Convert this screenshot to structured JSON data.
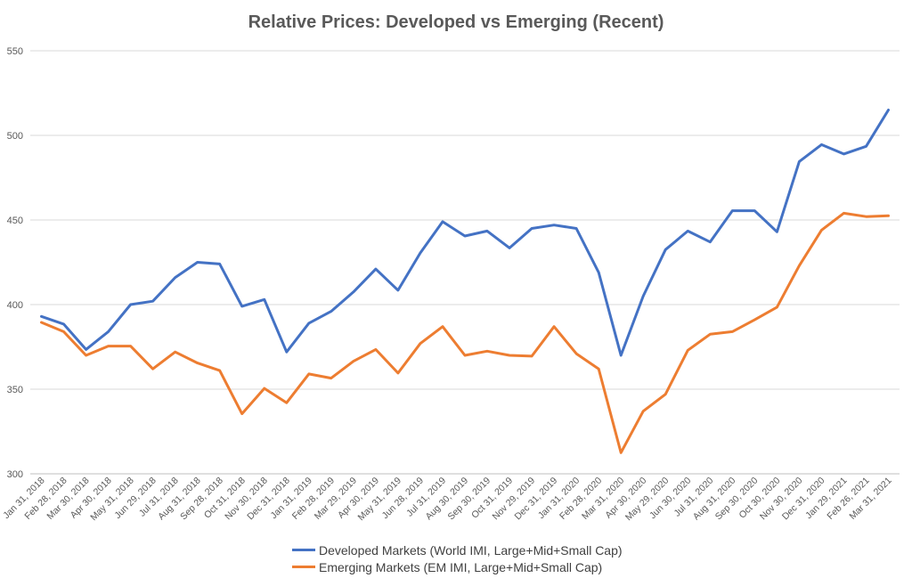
{
  "chart_data": {
    "type": "line",
    "title": "Relative Prices: Developed vs Emerging (Recent)",
    "xlabel": "",
    "ylabel": "",
    "ylim": [
      300,
      550
    ],
    "yticks": [
      300,
      350,
      400,
      450,
      500,
      550
    ],
    "grid": "horizontal",
    "legend_position": "bottom",
    "categories": [
      "Jan 31, 2018",
      "Feb 28, 2018",
      "Mar 30, 2018",
      "Apr 30, 2018",
      "May 31, 2018",
      "Jun 29, 2018",
      "Jul 31, 2018",
      "Aug 31, 2018",
      "Sep 28, 2018",
      "Oct 31, 2018",
      "Nov 30, 2018",
      "Dec 31, 2018",
      "Jan 31, 2019",
      "Feb 28, 2019",
      "Mar 29, 2019",
      "Apr 30, 2019",
      "May 31, 2019",
      "Jun 28, 2019",
      "Jul 31, 2019",
      "Aug 30, 2019",
      "Sep 30, 2019",
      "Oct 31, 2019",
      "Nov 29, 2019",
      "Dec 31, 2019",
      "Jan 31, 2020",
      "Feb 28, 2020",
      "Mar 31, 2020",
      "Apr 30, 2020",
      "May 29, 2020",
      "Jun 30, 2020",
      "Jul 31, 2020",
      "Aug 31, 2020",
      "Sep 30, 2020",
      "Oct 30, 2020",
      "Nov 30, 2020",
      "Dec 31, 2020",
      "Jan 29, 2021",
      "Feb 26, 2021",
      "Mar 31, 2021"
    ],
    "series": [
      {
        "name": "Developed Markets (World IMI, Large+Mid+Small Cap)",
        "color": "#4472C4",
        "values": [
          393,
          388.5,
          373.5,
          384,
          400,
          402,
          416,
          425,
          424,
          399,
          403,
          372,
          389,
          396,
          407.5,
          421,
          408.5,
          430.5,
          449,
          440.5,
          443.5,
          433.5,
          445,
          447,
          445,
          419,
          370,
          405,
          432.5,
          443.5,
          437,
          455.5,
          455.5,
          443,
          484.5,
          494.5,
          489,
          493.5,
          515
        ]
      },
      {
        "name": "Emerging Markets (EM IMI, Large+Mid+Small Cap)",
        "color": "#ED7D31",
        "values": [
          389.5,
          384,
          370,
          375.5,
          375.5,
          362,
          372,
          365.5,
          361,
          335.5,
          350.5,
          342,
          359,
          356.5,
          366.5,
          373.5,
          359.5,
          377,
          387,
          370,
          372.5,
          370,
          369.5,
          387,
          371,
          362,
          312.5,
          337,
          347,
          373,
          382.5,
          384,
          391,
          398.5,
          423,
          444,
          454,
          452,
          452.5
        ]
      }
    ]
  }
}
